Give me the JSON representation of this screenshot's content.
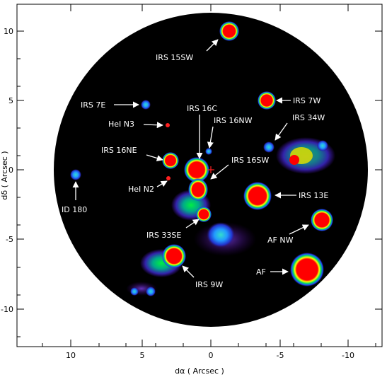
{
  "axes": {
    "xlabel": "dα ( Arcsec )",
    "ylabel": "dδ ( Arcsec )",
    "xrange": [
      13,
      -12.5
    ],
    "yrange": [
      -12.5,
      11.5
    ],
    "xticks": [
      "10",
      "5",
      "0",
      "-5",
      "-10"
    ],
    "yticks": [
      "10",
      "5",
      "0",
      "-5",
      "-10"
    ]
  },
  "sources": [
    {
      "label": "IRS 15SW"
    },
    {
      "label": "IRS 7E"
    },
    {
      "label": "IRS 7W"
    },
    {
      "label": "IRS 16C"
    },
    {
      "label": "IRS 16NW"
    },
    {
      "label": "IRS 34W"
    },
    {
      "label": "HeI N3"
    },
    {
      "label": "IRS 16NE"
    },
    {
      "label": "IRS 16SW"
    },
    {
      "label": "HeI N2"
    },
    {
      "label": "IRS 13E"
    },
    {
      "label": "ID 180"
    },
    {
      "label": "IRS 33SE"
    },
    {
      "label": "AF NW"
    },
    {
      "label": "AF"
    },
    {
      "label": "IRS 9W"
    }
  ],
  "colors": {
    "background": "#000000",
    "peak": "#ff0000",
    "halo": "#00cc66",
    "marker": "#ff2020"
  }
}
